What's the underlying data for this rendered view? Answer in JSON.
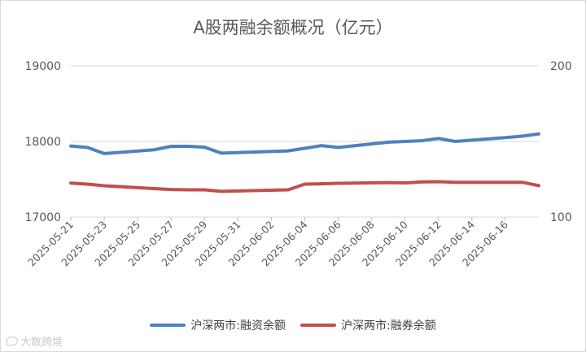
{
  "chart_data": {
    "type": "line",
    "title": "A股两融余额概况（亿元）",
    "x": [
      "2025-05-21",
      "2025-05-22",
      "2025-05-23",
      "2025-05-26",
      "2025-05-27",
      "2025-05-28",
      "2025-05-29",
      "2025-05-30",
      "2025-06-03",
      "2025-06-04",
      "2025-06-05",
      "2025-06-06",
      "2025-06-09",
      "2025-06-10",
      "2025-06-11",
      "2025-06-12",
      "2025-06-13",
      "2025-06-16",
      "2025-06-17",
      "2025-06-18"
    ],
    "xticks": [
      "2025-05-21",
      "2025-05-23",
      "2025-05-25",
      "2025-05-27",
      "2025-05-29",
      "2025-05-31",
      "2025-06-02",
      "2025-06-04",
      "2025-06-06",
      "2025-06-08",
      "2025-06-10",
      "2025-06-12",
      "2025-06-14",
      "2025-06-16"
    ],
    "xlim": [
      "2025-05-21",
      "2025-06-18"
    ],
    "y_left": {
      "lim": [
        17000,
        19000
      ],
      "ticks": [
        "17000",
        "18000",
        "19000"
      ]
    },
    "y_right": {
      "lim": [
        100,
        200
      ],
      "ticks": [
        "100",
        "200"
      ]
    },
    "grid": true,
    "legend_position": "bottom",
    "series": [
      {
        "name": "沪深两市:融资余额",
        "axis": "left",
        "color": "#4f81bd",
        "values": [
          17940,
          17920,
          17840,
          17890,
          17935,
          17935,
          17925,
          17845,
          17875,
          17910,
          17945,
          17920,
          17990,
          18000,
          18010,
          18040,
          18000,
          18050,
          18070,
          18100
        ]
      },
      {
        "name": "沪深两市:融券余额",
        "axis": "right",
        "color": "#c0504d",
        "values": [
          122.5,
          121.8,
          120.7,
          118.8,
          118.2,
          118.0,
          118.0,
          117.0,
          118.0,
          121.8,
          122.0,
          122.3,
          122.8,
          122.6,
          123.2,
          123.4,
          123.0,
          123.0,
          123.0,
          120.8
        ]
      }
    ]
  },
  "watermark": {
    "text": "大数跨境"
  }
}
